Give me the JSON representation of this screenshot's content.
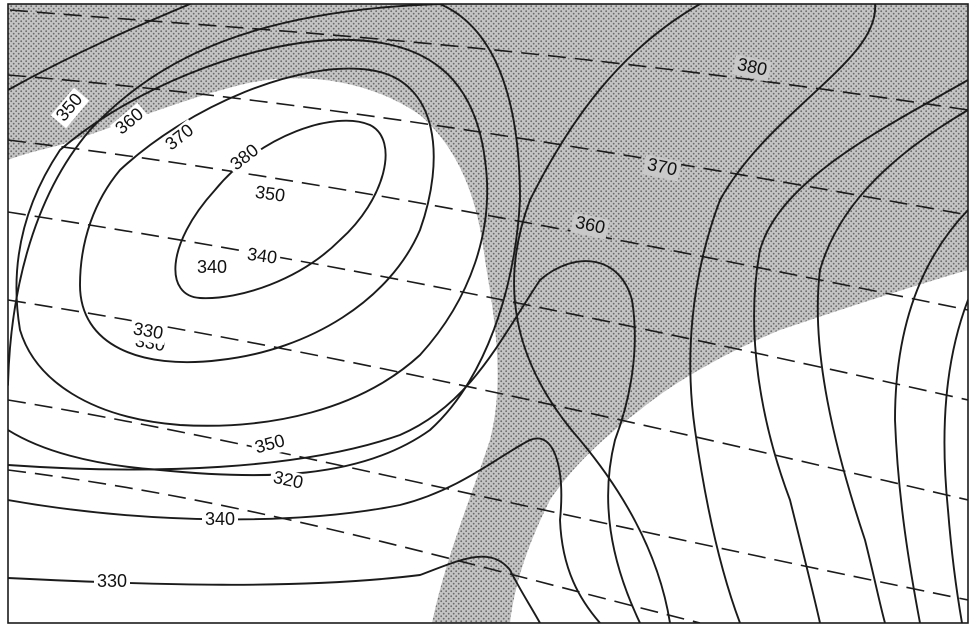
{
  "solid_contour_labels": [
    "380",
    "370",
    "360",
    "350",
    "340",
    "330",
    "350",
    "340",
    "330"
  ],
  "dashed_contour_labels": [
    "380",
    "370",
    "360",
    "350",
    "340",
    "330",
    "320"
  ],
  "colors": {
    "line": "#1b1b1b",
    "shading_background": "#c4c4c4",
    "shading_dots": "#6a6a6a",
    "paper": "#ffffff"
  }
}
